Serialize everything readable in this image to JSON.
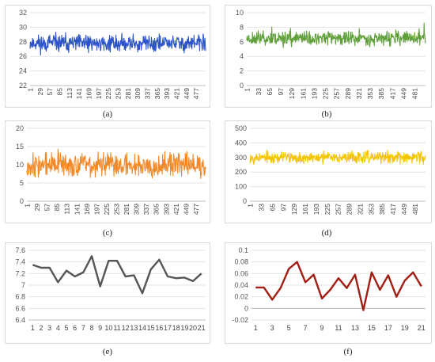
{
  "chart_data": [
    {
      "id": "a",
      "caption": "(a)",
      "type": "line",
      "color": "#2e55c8",
      "ylim": [
        22,
        32
      ],
      "yticks": [
        22,
        24,
        26,
        28,
        30,
        32
      ],
      "xlabels": [
        "1",
        "29",
        "57",
        "85",
        "113",
        "141",
        "169",
        "197",
        "225",
        "253",
        "281",
        "309",
        "337",
        "365",
        "393",
        "421",
        "449",
        "477"
      ],
      "n": 500,
      "mean": 27.8,
      "amplitude": 1.1,
      "seed": 11,
      "x_tick_rotation": "vertical",
      "grid": true
    },
    {
      "id": "b",
      "caption": "(b)",
      "type": "line",
      "color": "#5fa03a",
      "ylim": [
        0,
        10
      ],
      "yticks": [
        0,
        2,
        4,
        6,
        8,
        10
      ],
      "xlabels": [
        "1",
        "33",
        "65",
        "97",
        "129",
        "161",
        "193",
        "225",
        "257",
        "289",
        "321",
        "353",
        "385",
        "417",
        "449",
        "481"
      ],
      "n": 500,
      "mean": 6.5,
      "amplitude": 0.9,
      "seed": 23,
      "x_tick_rotation": "vertical",
      "grid": true
    },
    {
      "id": "c",
      "caption": "(c)",
      "type": "line",
      "color": "#f28a2a",
      "ylim": [
        0,
        20
      ],
      "yticks": [
        0,
        5,
        10,
        15,
        20
      ],
      "xlabels": [
        "1",
        "29",
        "57",
        "85",
        "113",
        "141",
        "169",
        "197",
        "225",
        "253",
        "281",
        "309",
        "337",
        "365",
        "393",
        "421",
        "449",
        "477"
      ],
      "n": 500,
      "mean": 10,
      "amplitude": 3,
      "seed": 37,
      "x_tick_rotation": "vertical",
      "grid": true
    },
    {
      "id": "d",
      "caption": "(d)",
      "type": "line",
      "color": "#f5c400",
      "ylim": [
        0,
        500
      ],
      "yticks": [
        0,
        100,
        200,
        300,
        400,
        500
      ],
      "xlabels": [
        "1",
        "33",
        "65",
        "97",
        "129",
        "161",
        "193",
        "225",
        "257",
        "289",
        "321",
        "353",
        "385",
        "417",
        "449",
        "481"
      ],
      "n": 500,
      "mean": 300,
      "amplitude": 38,
      "seed": 53,
      "x_tick_rotation": "vertical",
      "grid": true
    },
    {
      "id": "e",
      "caption": "(e)",
      "type": "line",
      "color": "#555555",
      "ylim": [
        6.4,
        7.6
      ],
      "yticks": [
        6.4,
        6.6,
        6.8,
        7,
        7.2,
        7.4,
        7.6
      ],
      "x": [
        1,
        2,
        3,
        4,
        5,
        6,
        7,
        8,
        9,
        10,
        11,
        12,
        13,
        14,
        15,
        16,
        17,
        18,
        19,
        20,
        21
      ],
      "xlabels": [
        "1",
        "2",
        "3",
        "4",
        "5",
        "6",
        "7",
        "8",
        "9",
        "10",
        "11",
        "12",
        "13",
        "14",
        "15",
        "16",
        "17",
        "18",
        "19",
        "20",
        "21"
      ],
      "values": [
        7.35,
        7.3,
        7.3,
        7.05,
        7.25,
        7.15,
        7.22,
        7.5,
        6.98,
        7.42,
        7.42,
        7.15,
        7.17,
        6.86,
        7.27,
        7.44,
        7.15,
        7.12,
        7.13,
        7.07,
        7.2
      ],
      "x_tick_rotation": "horizontal",
      "grid": true
    },
    {
      "id": "f",
      "caption": "(f)",
      "type": "line",
      "color": "#a01e14",
      "ylim": [
        -0.02,
        0.1
      ],
      "yticks": [
        -0.02,
        0,
        0.02,
        0.04,
        0.06,
        0.08,
        0.1
      ],
      "x": [
        1,
        2,
        3,
        4,
        5,
        6,
        7,
        8,
        9,
        10,
        11,
        12,
        13,
        14,
        15,
        16,
        17,
        18,
        19,
        20,
        21
      ],
      "xlabels": [
        "1",
        "3",
        "5",
        "7",
        "9",
        "11",
        "13",
        "15",
        "17",
        "19",
        "21"
      ],
      "xlabel_positions": [
        1,
        3,
        5,
        7,
        9,
        11,
        13,
        15,
        17,
        19,
        21
      ],
      "values": [
        0.036,
        0.036,
        0.015,
        0.035,
        0.068,
        0.08,
        0.045,
        0.058,
        0.017,
        0.032,
        0.052,
        0.035,
        0.058,
        -0.003,
        0.062,
        0.032,
        0.057,
        0.02,
        0.048,
        0.062,
        0.038
      ],
      "x_tick_rotation": "horizontal",
      "grid": true
    }
  ]
}
